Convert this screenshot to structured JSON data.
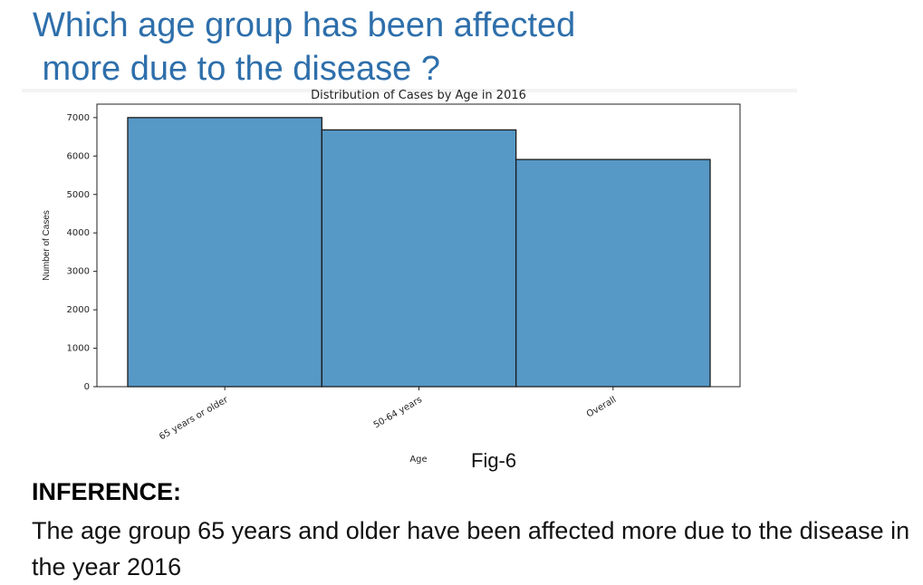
{
  "slide": {
    "title_lines": [
      "Which age group has been affected",
      " more due to the disease ?"
    ],
    "figure_caption": "Fig-6",
    "inference_heading": "INFERENCE:",
    "inference_text": "The age group 65 years and older have been affected more due to the disease in the year 2016"
  },
  "chart_data": {
    "type": "bar",
    "title": "Distribution of Cases by Age in 2016",
    "xlabel": "Age",
    "ylabel": "Number of Cases",
    "categories": [
      "65 years or older",
      "50-64 years",
      "Overall"
    ],
    "values": [
      7000,
      6680,
      5910
    ],
    "ylim": [
      0,
      7350
    ],
    "yticks": [
      0,
      1000,
      2000,
      3000,
      4000,
      5000,
      6000,
      7000
    ],
    "grid": false,
    "bar_color": "#5698c6",
    "edge_color": "#1a1a1a"
  }
}
